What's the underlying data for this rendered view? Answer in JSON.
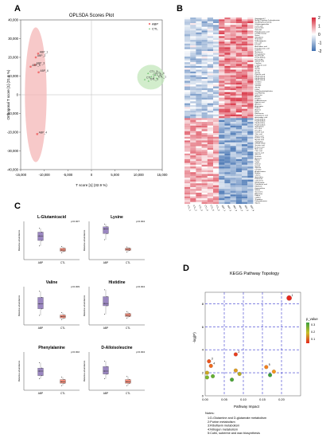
{
  "panels": {
    "A": "A",
    "B": "B",
    "C": "C",
    "D": "D"
  },
  "chart_data": [
    {
      "type": "scatter",
      "panel": "A",
      "title": "OPLSDA Scores Plot",
      "xlabel": "T score [1] (32.9 %)",
      "ylabel": "Orthogonal T score [1] (21.8 %)",
      "xlim": [
        -15000,
        15000
      ],
      "ylim": [
        -40000,
        40000
      ],
      "xticks": [
        "-15,000",
        "-10,000",
        "-5,000",
        "0",
        "5,000",
        "10,000",
        "15,000"
      ],
      "yticks": [
        "40,000",
        "30,000",
        "20,000",
        "10,000",
        "0",
        "-10,000",
        "-20,000",
        "-30,000",
        "-40,000"
      ],
      "legend": [
        "ABP",
        "CTL"
      ],
      "legend_position": "top-right",
      "series": [
        {
          "name": "ABP",
          "color": "#f07070",
          "x": [
            -11300,
            -11800,
            -12000,
            -12900,
            -11200,
            -11500
          ],
          "y": [
            22000,
            20000,
            16000,
            15000,
            12000,
            -21000
          ]
        },
        {
          "name": "CTL",
          "color": "#7cc87c",
          "x": [
            12000,
            11300,
            12700,
            13400,
            12100,
            13800
          ],
          "y": [
            11500,
            8200,
            9700,
            10600,
            7400,
            8800
          ]
        }
      ],
      "point_labels": [
        "ABP_1",
        "ABP_2",
        "ABP_3",
        "ABP_5",
        "ABP_6",
        "ABP_4",
        "CTL_5",
        "CTL_2",
        "CTL_6",
        "CTL_4",
        "CTL_3",
        "CTL_1"
      ]
    },
    {
      "type": "heatmap",
      "panel": "B",
      "colorbar": {
        "ticks": [
          "2",
          "1",
          "0",
          "-1",
          "-2"
        ],
        "high": "#d6283a",
        "mid": "#ffffff",
        "low": "#3f6fb0"
      },
      "columns": [
        "CTL_1",
        "CTL_2",
        "CTL_3",
        "CTL_4",
        "CTL_5",
        "CTL_6",
        "ABP_1",
        "ABP_2",
        "ABP_3",
        "ABP_4",
        "ABP_5",
        "ABP_6"
      ],
      "rows": [
        "Gingerglycol C",
        "Methyl 2-hydroxy-2-phenylacetate",
        "N1-Methylnicotinamide",
        "8-Hydroxyquinoline",
        "Lactic acid",
        "Lys-Leu-Ser",
        "Galactitol",
        "Heptadecanoic acid",
        "Lys-Asp-Val-Lys",
        "Serine",
        "Glutathione",
        "Threonine",
        "N-Acetylglycine",
        "Uric acid",
        "Leucine",
        "Arachidonic acid",
        "Pentadecanoic acid",
        "Xanthine",
        "Methionine",
        "Phenylalanine",
        "Ser-Phe-Gln",
        "PC(14:0/20:4)",
        "Phe-Ile-Arg",
        "Glutaric acid",
        "Citrulline",
        "L-Glutamic acid",
        "Ile-Ala",
        "Val-Val",
        "Ile-Gly",
        "Taurine",
        "Pipecolic acid",
        "PE(16:0/20:4)",
        "PE(18:0/20:4)",
        "PE(18:1/20:4)",
        "Ornithine",
        "Creatine",
        "Tyrosine",
        "Gly-Val",
        "Lysine",
        "Lysophosphatidylcholine",
        "LysoPE(18:0)",
        "Isoleucine",
        "Alanine",
        "Histidine",
        "D-Alloisoleucine",
        "Hippuric acid",
        "Allantoin",
        "Asparagine",
        "Proline",
        "Arginine",
        "Valine",
        "Homoserine",
        "Pyroglutamic acid",
        "Aminoadipic acid",
        "PC(16:0/18:1)",
        "PC(18:0/18:2)",
        "PE(18:0/18:1)",
        "PC(18:1/18:2)",
        "Sphingosine",
        "LPC 16:0",
        "LPC 18:1",
        "Linoleic acid",
        "Oleic acid",
        "Stearic acid",
        "Palmitic acid",
        "Myristic acid",
        "Tryptophan",
        "Indoxyl sulfate",
        "Succinic acid",
        "Fumaric acid",
        "Malic acid",
        "Citric acid",
        "Isocitric acid",
        "Glucose",
        "Fructose",
        "Mannose",
        "Ribose",
        "Xylitol",
        "Sorbitol",
        "Inositol",
        "Glycerol",
        "Carnitine",
        "Acetylcarnitine",
        "Betaine",
        "Choline",
        "Spermidine",
        "Putrescine",
        "Cadaverine",
        "Nicotinamide",
        "Pantothenic acid",
        "Riboflavin",
        "Hypoxanthine",
        "Inosine",
        "Guanosine",
        "Adenosine",
        "Uridine",
        "Cytidine",
        "Thymidine",
        "Deoxyadenosine",
        "Glycine"
      ]
    },
    {
      "type": "box",
      "panel": "C",
      "ylabel": "Relative abundance",
      "categories": [
        "ABP",
        "CTL"
      ],
      "colors": {
        "ABP": "#9a86c0",
        "CTL": "#f08a78"
      },
      "plots": [
        {
          "title": "L-Glutamicacid",
          "pvalue": "p=0.007",
          "ABP": {
            "q1": 0.5,
            "med": 0.62,
            "q3": 0.72,
            "min": 0.36,
            "max": 0.82
          },
          "CTL": {
            "q1": 0.22,
            "med": 0.25,
            "q3": 0.3,
            "min": 0.18,
            "max": 0.34
          }
        },
        {
          "title": "Lysine",
          "pvalue": "p=0.004",
          "ABP": {
            "q1": 0.68,
            "med": 0.8,
            "q3": 0.86,
            "min": 0.52,
            "max": 0.93
          },
          "CTL": {
            "q1": 0.24,
            "med": 0.27,
            "q3": 0.3,
            "min": 0.2,
            "max": 0.33
          }
        },
        {
          "title": "Valine",
          "pvalue": "p=0.009",
          "ABP": {
            "q1": 0.42,
            "med": 0.55,
            "q3": 0.72,
            "min": 0.25,
            "max": 0.88
          },
          "CTL": {
            "q1": 0.18,
            "med": 0.22,
            "q3": 0.26,
            "min": 0.14,
            "max": 0.32
          }
        },
        {
          "title": "Histidine",
          "pvalue": "p=0.004",
          "ABP": {
            "q1": 0.5,
            "med": 0.56,
            "q3": 0.74,
            "min": 0.28,
            "max": 0.92
          },
          "CTL": {
            "q1": 0.22,
            "med": 0.25,
            "q3": 0.3,
            "min": 0.18,
            "max": 0.35
          }
        },
        {
          "title": "Phenylalanine",
          "pvalue": "p=0.002",
          "ABP": {
            "q1": 0.38,
            "med": 0.5,
            "q3": 0.58,
            "min": 0.3,
            "max": 0.72
          },
          "CTL": {
            "q1": 0.18,
            "med": 0.22,
            "q3": 0.28,
            "min": 0.12,
            "max": 0.34
          }
        },
        {
          "title": "D-Alloisoleucine",
          "pvalue": "p=0.004",
          "ABP": {
            "q1": 0.42,
            "med": 0.5,
            "q3": 0.62,
            "min": 0.3,
            "max": 0.76
          },
          "CTL": {
            "q1": 0.18,
            "med": 0.22,
            "q3": 0.28,
            "min": 0.12,
            "max": 0.36
          }
        }
      ]
    },
    {
      "type": "scatter",
      "panel": "D",
      "title": "KEGG Pathway Topology",
      "xlabel": "Pathway Impact",
      "ylabel": "-log(P)",
      "xlim": [
        0.0,
        0.25
      ],
      "ylim": [
        0,
        9
      ],
      "xticks": [
        "0.00",
        "0.05",
        "0.10",
        "0.15",
        "0.20"
      ],
      "yticks": [
        "8",
        "6",
        "4",
        "2",
        "0"
      ],
      "legend_title": "p_value",
      "legend_ticks": [
        "0.3",
        "0.2",
        "0.1"
      ],
      "points": [
        {
          "x": 0.22,
          "y": 8.5,
          "p": 0.001,
          "label": "1"
        },
        {
          "x": 0.08,
          "y": 3.6,
          "p": 0.02,
          "label": "2"
        },
        {
          "x": 0.01,
          "y": 3.0,
          "p": 0.04,
          "label": "3"
        },
        {
          "x": 0.015,
          "y": 2.6,
          "p": 0.06,
          "label": "4"
        },
        {
          "x": 0.16,
          "y": 2.5,
          "p": 0.08,
          "label": "5"
        },
        {
          "x": 0.18,
          "y": 2.1,
          "p": 0.1,
          "label": ""
        },
        {
          "x": 0.08,
          "y": 2.2,
          "p": 0.12,
          "label": ""
        },
        {
          "x": 0.005,
          "y": 2.0,
          "p": 0.14,
          "label": ""
        },
        {
          "x": 0.09,
          "y": 1.9,
          "p": 0.16,
          "label": ""
        },
        {
          "x": 0.005,
          "y": 1.6,
          "p": 0.22,
          "label": ""
        },
        {
          "x": 0.02,
          "y": 1.7,
          "p": 0.25,
          "label": ""
        },
        {
          "x": 0.07,
          "y": 1.4,
          "p": 0.28,
          "label": ""
        },
        {
          "x": 0.17,
          "y": 1.8,
          "p": 0.3,
          "label": ""
        }
      ],
      "notes_title": "Notes:",
      "notes": [
        "1:D-Glutamine and D-glutamate metabolism",
        "2:Purine metabolism",
        "3:Riboflavin metabolism",
        "4:Nitrogen metabolism",
        "5:Cutin, suberine and wax biosynthesis"
      ]
    }
  ]
}
